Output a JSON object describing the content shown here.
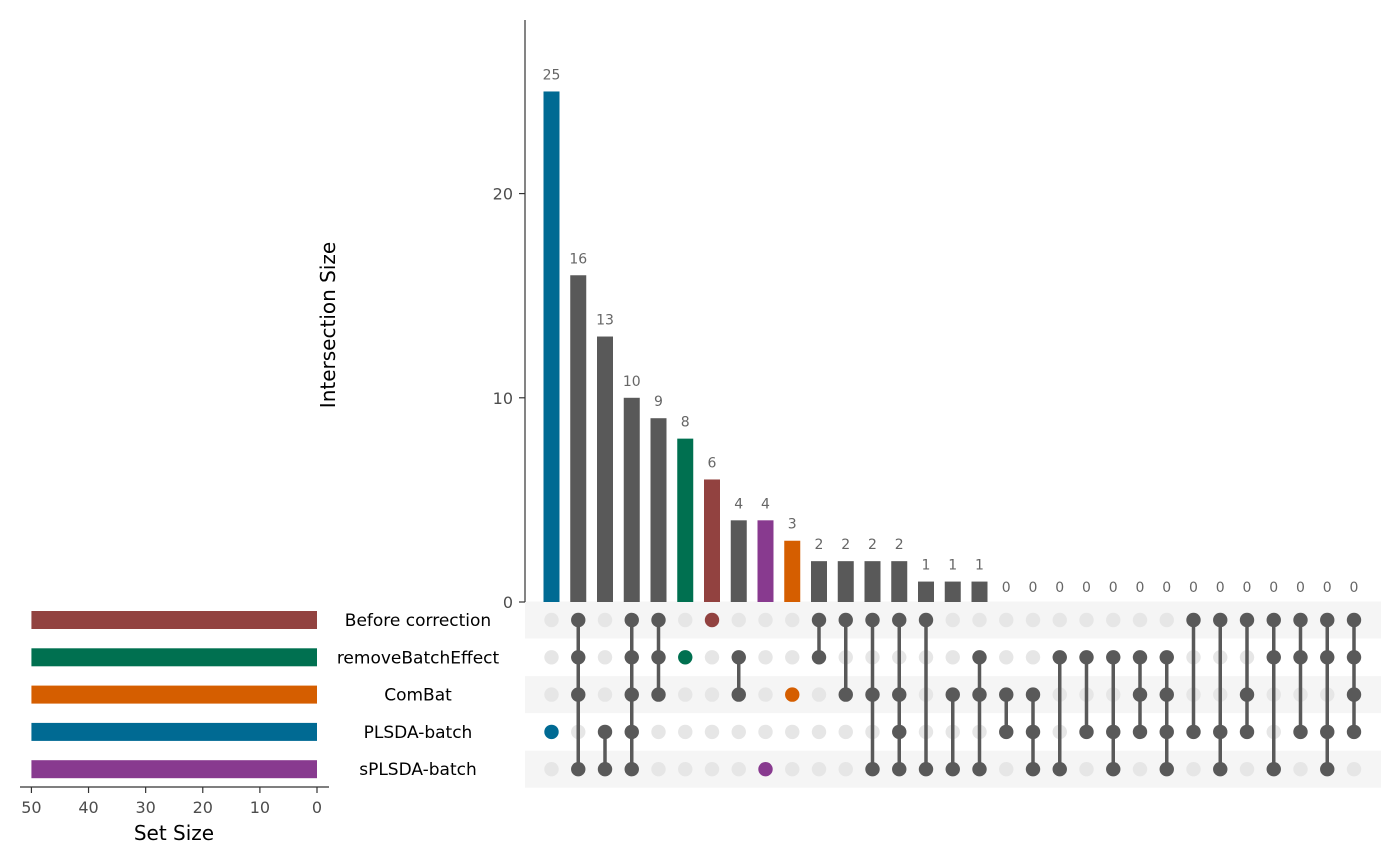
{
  "chart_data": {
    "type": "upset",
    "intersection_axis": {
      "label": "Intersection Size",
      "ticks": [
        0,
        10,
        20
      ],
      "ylim": [
        0,
        28.5
      ]
    },
    "set_size_axis": {
      "label": "Set Size",
      "ticks": [
        50,
        40,
        30,
        20,
        10,
        0
      ],
      "xlim": [
        0,
        52
      ],
      "reversed": true
    },
    "sets": [
      {
        "name": "Before correction",
        "size": 50,
        "color": "#924240"
      },
      {
        "name": "removeBatchEffect",
        "size": 50,
        "color": "#007050"
      },
      {
        "name": "ComBat",
        "size": 50,
        "color": "#D55E00"
      },
      {
        "name": "PLSDA-batch",
        "size": 50,
        "color": "#006A93"
      },
      {
        "name": "sPLSDA-batch",
        "size": 50,
        "color": "#883A8F"
      }
    ],
    "intersections": [
      {
        "size": 25,
        "members": [
          3
        ],
        "color": "#006A93"
      },
      {
        "size": 16,
        "members": [
          0,
          1,
          2,
          4
        ]
      },
      {
        "size": 13,
        "members": [
          3,
          4
        ]
      },
      {
        "size": 10,
        "members": [
          0,
          1,
          2,
          3,
          4
        ]
      },
      {
        "size": 9,
        "members": [
          0,
          1,
          2
        ]
      },
      {
        "size": 8,
        "members": [
          1
        ],
        "color": "#007050"
      },
      {
        "size": 6,
        "members": [
          0
        ],
        "color": "#924240"
      },
      {
        "size": 4,
        "members": [
          1,
          2
        ]
      },
      {
        "size": 4,
        "members": [
          4
        ],
        "color": "#883A8F"
      },
      {
        "size": 3,
        "members": [
          2
        ],
        "color": "#D55E00"
      },
      {
        "size": 2,
        "members": [
          0,
          1
        ]
      },
      {
        "size": 2,
        "members": [
          0,
          2
        ]
      },
      {
        "size": 2,
        "members": [
          0,
          2,
          4
        ]
      },
      {
        "size": 2,
        "members": [
          0,
          2,
          3,
          4
        ]
      },
      {
        "size": 1,
        "members": [
          0,
          4
        ]
      },
      {
        "size": 1,
        "members": [
          2,
          4
        ]
      },
      {
        "size": 1,
        "members": [
          1,
          2,
          4
        ]
      },
      {
        "size": 0,
        "members": [
          2,
          3
        ]
      },
      {
        "size": 0,
        "members": [
          2,
          3,
          4
        ]
      },
      {
        "size": 0,
        "members": [
          1,
          4
        ]
      },
      {
        "size": 0,
        "members": [
          1,
          3
        ]
      },
      {
        "size": 0,
        "members": [
          1,
          3,
          4
        ]
      },
      {
        "size": 0,
        "members": [
          1,
          2,
          3
        ]
      },
      {
        "size": 0,
        "members": [
          1,
          2,
          3,
          4
        ]
      },
      {
        "size": 0,
        "members": [
          0,
          3
        ]
      },
      {
        "size": 0,
        "members": [
          0,
          3,
          4
        ]
      },
      {
        "size": 0,
        "members": [
          0,
          2,
          3
        ]
      },
      {
        "size": 0,
        "members": [
          0,
          1,
          4
        ]
      },
      {
        "size": 0,
        "members": [
          0,
          1,
          3
        ]
      },
      {
        "size": 0,
        "members": [
          0,
          1,
          3,
          4
        ]
      },
      {
        "size": 0,
        "members": [
          0,
          1,
          2,
          3
        ]
      }
    ],
    "bar_color": "#595959",
    "dot_active_color": "#595959",
    "dot_inactive_color": "#e6e6e6",
    "stripe_color": "#f5f5f5"
  }
}
